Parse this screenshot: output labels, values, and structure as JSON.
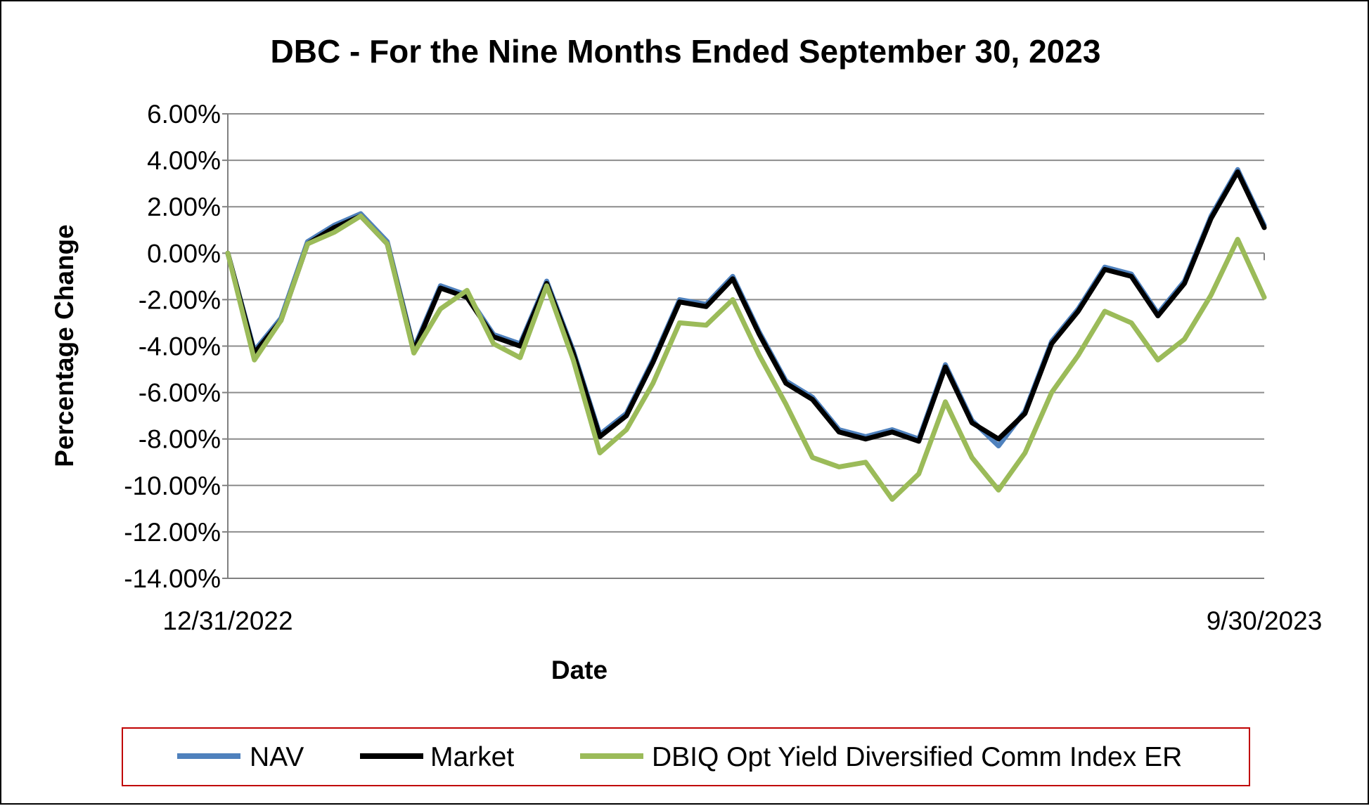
{
  "chart_data": {
    "type": "line",
    "title": "DBC - For the Nine Months Ended September 30, 2023",
    "xlabel": "Date",
    "ylabel": "Percentage Change",
    "x_tick_labels": [
      "12/31/2022",
      "9/30/2023"
    ],
    "y_tick_labels": [
      "6.00%",
      "4.00%",
      "2.00%",
      "0.00%",
      "-2.00%",
      "-4.00%",
      "-6.00%",
      "-8.00%",
      "-10.00%",
      "-12.00%",
      "-14.00%"
    ],
    "ylim": [
      -14,
      6
    ],
    "ytick_step": 2,
    "grid": "horizontal",
    "legend_position": "bottom",
    "x": [
      "12/31/2022",
      "1/6/2023",
      "1/13/2023",
      "1/20/2023",
      "1/27/2023",
      "2/3/2023",
      "2/10/2023",
      "2/17/2023",
      "2/24/2023",
      "3/3/2023",
      "3/10/2023",
      "3/17/2023",
      "3/24/2023",
      "3/31/2023",
      "4/7/2023",
      "4/14/2023",
      "4/21/2023",
      "4/28/2023",
      "5/5/2023",
      "5/12/2023",
      "5/19/2023",
      "5/26/2023",
      "6/2/2023",
      "6/9/2023",
      "6/16/2023",
      "6/23/2023",
      "6/30/2023",
      "7/7/2023",
      "7/14/2023",
      "7/21/2023",
      "7/28/2023",
      "8/4/2023",
      "8/11/2023",
      "8/18/2023",
      "8/25/2023",
      "9/1/2023",
      "9/8/2023",
      "9/15/2023",
      "9/22/2023",
      "9/30/2023"
    ],
    "series": [
      {
        "name": "NAV",
        "color": "#4f81bd",
        "values": [
          0.0,
          -4.2,
          -2.8,
          0.5,
          1.2,
          1.7,
          0.5,
          -4.1,
          -1.4,
          -1.8,
          -3.5,
          -3.9,
          -1.2,
          -4.2,
          -7.8,
          -6.9,
          -4.6,
          -2.0,
          -2.2,
          -1.0,
          -3.4,
          -5.5,
          -6.2,
          -7.6,
          -7.9,
          -7.6,
          -8.0,
          -4.8,
          -7.2,
          -8.3,
          -6.8,
          -3.8,
          -2.4,
          -0.6,
          -0.9,
          -2.6,
          -1.2,
          1.6,
          3.6,
          1.2
        ]
      },
      {
        "name": "Market",
        "color": "#000000",
        "values": [
          0.0,
          -4.3,
          -2.9,
          0.4,
          1.1,
          1.6,
          0.4,
          -4.2,
          -1.5,
          -1.9,
          -3.6,
          -4.0,
          -1.3,
          -4.3,
          -7.9,
          -7.0,
          -4.7,
          -2.1,
          -2.3,
          -1.1,
          -3.5,
          -5.6,
          -6.3,
          -7.7,
          -8.0,
          -7.7,
          -8.1,
          -4.9,
          -7.3,
          -8.0,
          -6.9,
          -3.9,
          -2.5,
          -0.7,
          -1.0,
          -2.7,
          -1.3,
          1.5,
          3.5,
          1.1
        ]
      },
      {
        "name": "DBIQ Opt Yield Diversified Comm Index ER",
        "color": "#9bbb59",
        "values": [
          0.0,
          -4.6,
          -2.9,
          0.4,
          0.9,
          1.6,
          0.4,
          -4.3,
          -2.4,
          -1.6,
          -3.9,
          -4.5,
          -1.4,
          -4.6,
          -8.6,
          -7.6,
          -5.6,
          -3.0,
          -3.1,
          -2.0,
          -4.4,
          -6.5,
          -8.8,
          -9.2,
          -9.0,
          -10.6,
          -9.5,
          -6.4,
          -8.8,
          -10.2,
          -8.6,
          -6.0,
          -4.4,
          -2.5,
          -3.0,
          -4.6,
          -3.7,
          -1.8,
          0.6,
          -1.9
        ]
      }
    ]
  }
}
